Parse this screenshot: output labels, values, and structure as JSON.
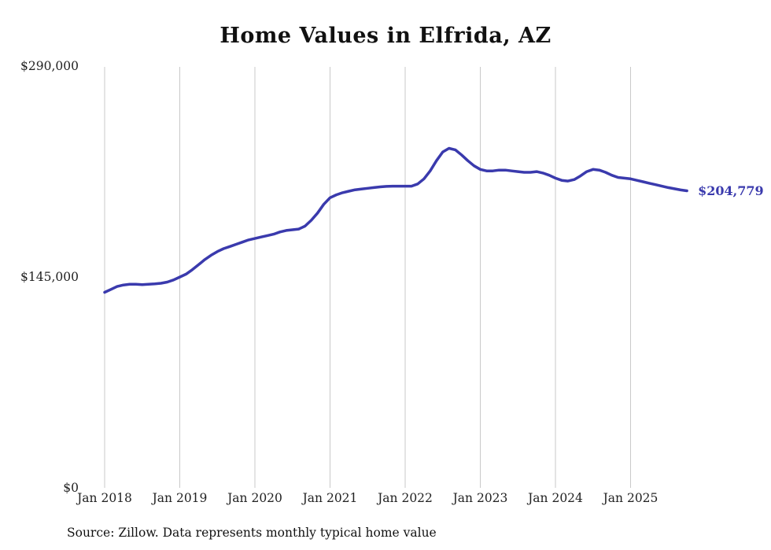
{
  "title": "Home Values in Elfrida, AZ",
  "source": "Source: Zillow. Data represents monthly typical home value",
  "chart_data": {
    "type": "line",
    "title": "Home Values in Elfrida, AZ",
    "xlabel": "",
    "ylabel": "",
    "ylim": [
      0,
      290000
    ],
    "grid": "vertical",
    "line_color": "#3a3aad",
    "gridline_color": "#c9c9c9",
    "start_month": "2018-01",
    "end_month": "2025-10",
    "end_label": "$204,779",
    "end_value": 204779,
    "x_ticks": [
      {
        "label": "Jan 2018",
        "month_index": 0
      },
      {
        "label": "Jan 2019",
        "month_index": 12
      },
      {
        "label": "Jan 2020",
        "month_index": 24
      },
      {
        "label": "Jan 2021",
        "month_index": 36
      },
      {
        "label": "Jan 2022",
        "month_index": 48
      },
      {
        "label": "Jan 2023",
        "month_index": 60
      },
      {
        "label": "Jan 2024",
        "month_index": 72
      },
      {
        "label": "Jan 2025",
        "month_index": 84
      }
    ],
    "y_ticks": [
      {
        "value": 0,
        "label": "$0"
      },
      {
        "value": 145000,
        "label": "$145,000"
      },
      {
        "value": 290000,
        "label": "$290,000"
      }
    ],
    "series": [
      {
        "name": "Typical home value",
        "values": [
          135000,
          137000,
          139000,
          140000,
          140500,
          140500,
          140300,
          140500,
          140800,
          141200,
          142000,
          143500,
          145500,
          147500,
          150500,
          154000,
          157500,
          160500,
          163000,
          165000,
          166500,
          168000,
          169500,
          171000,
          172000,
          173000,
          174000,
          175000,
          176500,
          177500,
          178000,
          178500,
          180500,
          184500,
          189500,
          195500,
          200000,
          202000,
          203500,
          204500,
          205500,
          206000,
          206500,
          207000,
          207500,
          207800,
          208000,
          208000,
          208000,
          208000,
          209500,
          213000,
          218500,
          225500,
          231500,
          234000,
          233000,
          229500,
          225500,
          222000,
          219500,
          218500,
          218500,
          219000,
          219000,
          218500,
          218000,
          217500,
          217500,
          218000,
          217000,
          215500,
          213500,
          212000,
          211500,
          212500,
          215000,
          218000,
          219500,
          219000,
          217500,
          215500,
          214000,
          213500,
          213000,
          212000,
          211000,
          210000,
          209000,
          208000,
          207000,
          206200,
          205400,
          204779
        ]
      }
    ]
  }
}
